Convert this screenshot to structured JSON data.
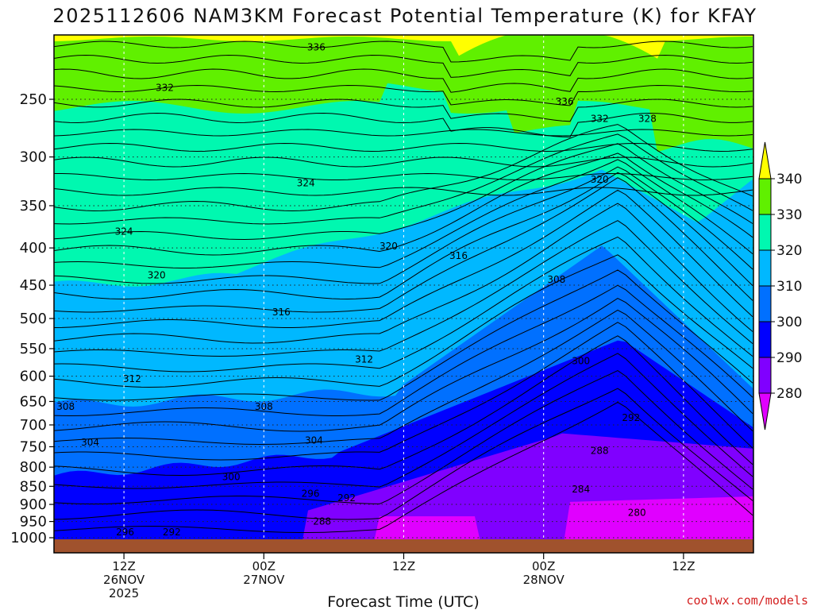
{
  "chart_data": {
    "type": "contour",
    "title": "2025112606 NAM3KM Forecast Potential Temperature (K) for KFAY",
    "xlabel": "Forecast Time (UTC)",
    "ylabel": "",
    "credit": "coolwx.com/models",
    "y_ticks": [
      "250",
      "300",
      "350",
      "400",
      "450",
      "500",
      "550",
      "600",
      "650",
      "700",
      "750",
      "800",
      "850",
      "900",
      "950",
      "1000"
    ],
    "y_scale": "log",
    "ylim": [
      1000,
      200
    ],
    "x_ticks": [
      {
        "hour": 6,
        "lines": [
          "12Z",
          "26NOV",
          "2025"
        ]
      },
      {
        "hour": 18,
        "lines": [
          "00Z",
          "27NOV"
        ]
      },
      {
        "hour": 30,
        "lines": [
          "12Z"
        ]
      },
      {
        "hour": 42,
        "lines": [
          "00Z",
          "28NOV"
        ]
      },
      {
        "hour": 54,
        "lines": [
          "12Z"
        ]
      }
    ],
    "xlim": [
      0,
      60
    ],
    "colorbar": {
      "ticks": [
        "280",
        "290",
        "300",
        "310",
        "320",
        "330",
        "340"
      ],
      "bands": [
        {
          "from": 270,
          "to": 280,
          "color": "#e000ff"
        },
        {
          "from": 280,
          "to": 290,
          "color": "#8000ff"
        },
        {
          "from": 290,
          "to": 300,
          "color": "#0000ff"
        },
        {
          "from": 300,
          "to": 310,
          "color": "#0070ff"
        },
        {
          "from": 310,
          "to": 320,
          "color": "#00b8ff"
        },
        {
          "from": 320,
          "to": 330,
          "color": "#00f8b0"
        },
        {
          "from": 330,
          "to": 340,
          "color": "#60f000"
        },
        {
          "from": 340,
          "to": 350,
          "color": "#ffff00"
        }
      ]
    },
    "contour_labels": [
      {
        "value": "336",
        "hour": 22.5,
        "p": 212
      },
      {
        "value": "332",
        "hour": 9.5,
        "p": 241
      },
      {
        "value": "336",
        "hour": 43.8,
        "p": 252
      },
      {
        "value": "332",
        "hour": 46.8,
        "p": 266
      },
      {
        "value": "328",
        "hour": 50.9,
        "p": 266
      },
      {
        "value": "324",
        "hour": 21.6,
        "p": 326
      },
      {
        "value": "320",
        "hour": 46.8,
        "p": 322
      },
      {
        "value": "324",
        "hour": 6.0,
        "p": 380
      },
      {
        "value": "320",
        "hour": 28.7,
        "p": 398
      },
      {
        "value": "316",
        "hour": 34.7,
        "p": 410
      },
      {
        "value": "320",
        "hour": 8.8,
        "p": 436
      },
      {
        "value": "308",
        "hour": 43.1,
        "p": 442
      },
      {
        "value": "316",
        "hour": 19.5,
        "p": 490
      },
      {
        "value": "312",
        "hour": 26.6,
        "p": 569
      },
      {
        "value": "300",
        "hour": 45.2,
        "p": 572
      },
      {
        "value": "312",
        "hour": 6.7,
        "p": 605
      },
      {
        "value": "308",
        "hour": 1.0,
        "p": 661
      },
      {
        "value": "308",
        "hour": 18.0,
        "p": 661
      },
      {
        "value": "292",
        "hour": 49.5,
        "p": 684
      },
      {
        "value": "304",
        "hour": 3.1,
        "p": 740
      },
      {
        "value": "304",
        "hour": 22.3,
        "p": 735
      },
      {
        "value": "288",
        "hour": 46.8,
        "p": 760
      },
      {
        "value": "300",
        "hour": 15.2,
        "p": 825
      },
      {
        "value": "296",
        "hour": 22.0,
        "p": 870
      },
      {
        "value": "292",
        "hour": 25.1,
        "p": 882
      },
      {
        "value": "284",
        "hour": 45.2,
        "p": 858
      },
      {
        "value": "288",
        "hour": 23.0,
        "p": 950
      },
      {
        "value": "280",
        "hour": 50.0,
        "p": 924
      },
      {
        "value": "296",
        "hour": 6.1,
        "p": 982
      },
      {
        "value": "292",
        "hour": 10.1,
        "p": 982
      }
    ]
  }
}
